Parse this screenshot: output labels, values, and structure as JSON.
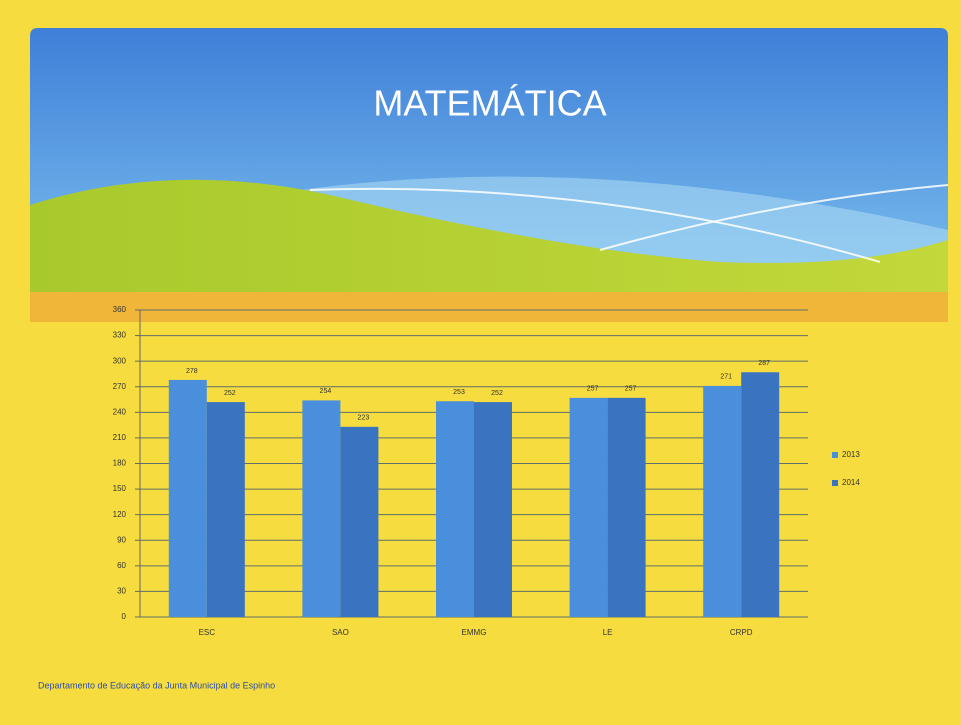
{
  "title": "MATEMÁTICA",
  "chart_data": {
    "type": "bar",
    "categories": [
      "ESC",
      "SAO",
      "EMMG",
      "LE",
      "CRPD"
    ],
    "series": [
      {
        "name": "2013",
        "color": "#4a8fdc",
        "values": [
          278,
          254,
          253,
          257,
          271
        ]
      },
      {
        "name": "2014",
        "color": "#3a73c0",
        "values": [
          252,
          223,
          252,
          257,
          287
        ]
      }
    ],
    "ylim": [
      0,
      360
    ],
    "yticks": [
      0,
      30,
      60,
      90,
      120,
      150,
      180,
      210,
      240,
      270,
      300,
      330,
      360
    ],
    "grid": true,
    "legend": "right"
  },
  "footer": "Departamento de Educação da Junta Municipal de Espinho"
}
